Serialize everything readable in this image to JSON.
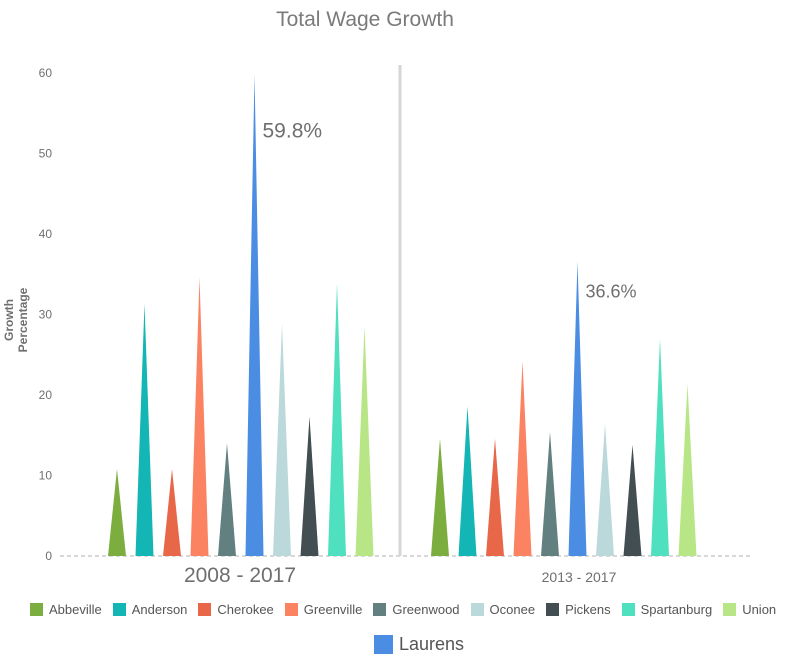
{
  "chart_data": {
    "type": "bar",
    "title": "Total Wage Growth",
    "ylabel": "Growth Percentage",
    "ylim": [
      0,
      60
    ],
    "yticks": [
      0,
      10,
      20,
      30,
      40,
      50,
      60
    ],
    "grid": false,
    "groups": [
      {
        "label": "2008 - 2017",
        "values": [
          10.8,
          31.3,
          10.8,
          34.6,
          14.0,
          59.8,
          28.9,
          17.3,
          33.9,
          28.6
        ],
        "annotation": "59.8%"
      },
      {
        "label": "2013 - 2017",
        "values": [
          14.6,
          18.6,
          14.6,
          24.2,
          15.4,
          36.6,
          16.4,
          13.8,
          27.0,
          21.4
        ],
        "annotation": "36.6%"
      }
    ],
    "series": [
      {
        "name": "Abbeville",
        "color": "#7cae3f"
      },
      {
        "name": "Anderson",
        "color": "#13b5b5"
      },
      {
        "name": "Cherokee",
        "color": "#e76748"
      },
      {
        "name": "Greenville",
        "color": "#fb8362"
      },
      {
        "name": "Greenwood",
        "color": "#62807f"
      },
      {
        "name": "Laurens",
        "color": "#4a8de3"
      },
      {
        "name": "Oconee",
        "color": "#bbd8db"
      },
      {
        "name": "Pickens",
        "color": "#424e52"
      },
      {
        "name": "Spartanburg",
        "color": "#4ee0bf"
      },
      {
        "name": "Union",
        "color": "#b8e686"
      }
    ],
    "legend": {
      "position": "bottom",
      "main": [
        "Abbeville",
        "Anderson",
        "Cherokee",
        "Greenville",
        "Greenwood",
        "Oconee",
        "Pickens",
        "Spartanburg",
        "Union"
      ],
      "highlight": "Laurens"
    }
  }
}
